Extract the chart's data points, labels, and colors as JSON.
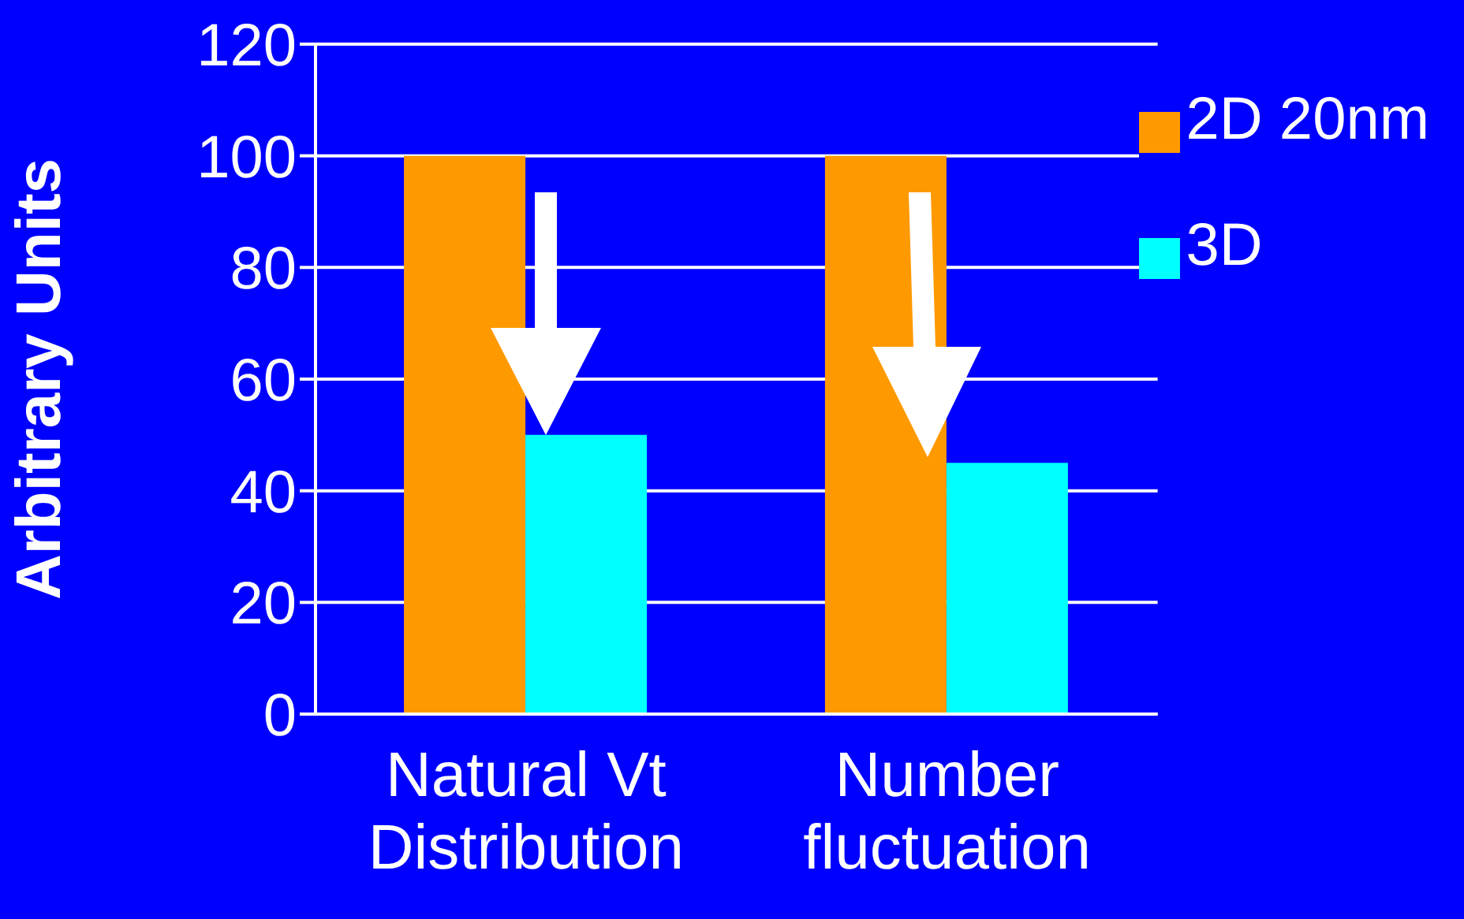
{
  "chart_data": {
    "type": "bar",
    "ylabel": "Arbitrary Units",
    "categories": [
      "Natural Vt Distribution",
      "Number fluctuation"
    ],
    "series": [
      {
        "name": "2D 20nm",
        "color": "#ff9900",
        "values": [
          100,
          100
        ]
      },
      {
        "name": "3D",
        "color": "#00ffff",
        "values": [
          50,
          45
        ]
      }
    ],
    "ylim": [
      0,
      120
    ],
    "yticks": [
      0,
      20,
      40,
      60,
      80,
      100,
      120
    ],
    "grid": "y",
    "legend": "top right"
  }
}
